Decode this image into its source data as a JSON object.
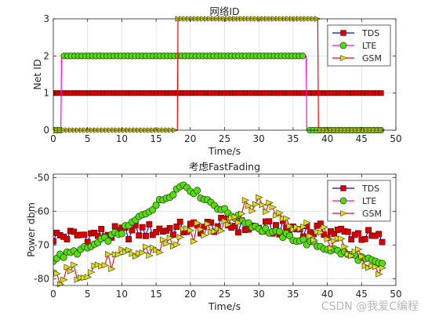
{
  "watermark": "CSDN @我爱C编程",
  "colors": {
    "tds_line": "#0000ff",
    "tds_marker": "#d40000",
    "lte_line": "#ff00ff",
    "lte_marker": "#55dd11",
    "gsm_line": "#ff0000",
    "gsm_marker": "#dddd22",
    "grid": "#dfdfdf",
    "axis": "#262626"
  },
  "chart_data": [
    {
      "type": "line",
      "title": "网络ID",
      "xlabel": "Time/s",
      "ylabel": "Net ID",
      "xlim": [
        0,
        50
      ],
      "ylim": [
        0,
        3
      ],
      "xticks": [
        0,
        5,
        10,
        15,
        20,
        25,
        30,
        35,
        40,
        45,
        50
      ],
      "yticks": [
        0,
        1,
        2,
        3
      ],
      "grid": true,
      "legend_position": "top-right",
      "series": [
        {
          "name": "TDS",
          "marker": "square",
          "x": [
            0,
            48
          ],
          "y": [
            1,
            1
          ]
        },
        {
          "name": "LTE",
          "marker": "circle",
          "x": [
            0,
            1.1,
            1.2,
            36.9,
            37.0,
            48
          ],
          "y": [
            0,
            0,
            2,
            2,
            0,
            0
          ]
        },
        {
          "name": "GSM",
          "marker": "triangle-right",
          "x": [
            0,
            18.1,
            18.2,
            38.6,
            38.7,
            48
          ],
          "y": [
            0,
            0,
            3,
            3,
            0,
            0
          ]
        }
      ]
    },
    {
      "type": "line",
      "title": "考虑FastFading",
      "xlabel": "Time/s",
      "ylabel": "Power dbm",
      "xlim": [
        0,
        50
      ],
      "ylim": [
        -82,
        -49
      ],
      "xticks": [
        0,
        5,
        10,
        15,
        20,
        25,
        30,
        35,
        40,
        45,
        50
      ],
      "yticks": [
        -80,
        -70,
        -60,
        -50
      ],
      "grid": true,
      "legend_position": "top-right",
      "series": [
        {
          "name": "TDS",
          "marker": "square",
          "x": [
            0,
            5,
            10,
            15,
            20,
            25,
            30,
            35,
            40,
            45,
            48
          ],
          "y": [
            -67.5,
            -67,
            -66.5,
            -65.5,
            -65,
            -64,
            -65,
            -65,
            -66,
            -67,
            -68.5
          ]
        },
        {
          "name": "LTE",
          "marker": "circle",
          "x": [
            0,
            5,
            10,
            15,
            19,
            25,
            30,
            35,
            40,
            45,
            48
          ],
          "y": [
            -74,
            -71,
            -66,
            -58,
            -52,
            -60,
            -65,
            -68,
            -71,
            -74,
            -76
          ]
        },
        {
          "name": "GSM",
          "marker": "triangle-right",
          "x": [
            0,
            5,
            10,
            15,
            20,
            25,
            30,
            35,
            40,
            45,
            48
          ],
          "y": [
            -80,
            -77,
            -74,
            -71,
            -67,
            -63,
            -57,
            -63,
            -68,
            -74,
            -78
          ]
        }
      ]
    }
  ]
}
